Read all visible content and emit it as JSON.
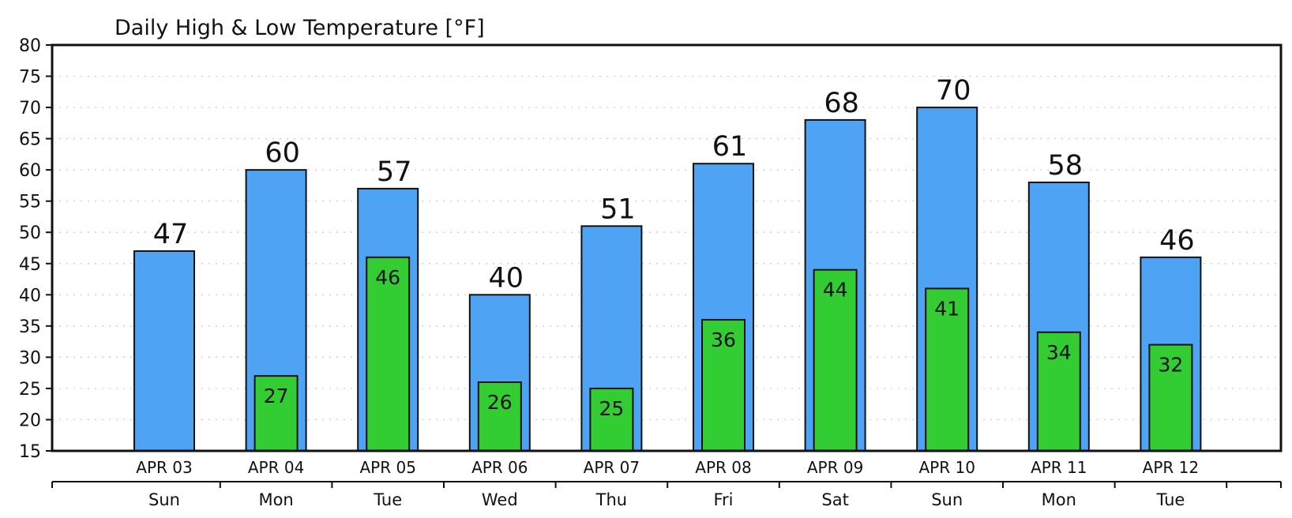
{
  "chart_data": {
    "type": "bar",
    "title": "Daily High & Low Temperature [°F]",
    "ylim": [
      15,
      80
    ],
    "yticks": [
      15,
      20,
      25,
      30,
      35,
      40,
      45,
      50,
      55,
      60,
      65,
      70,
      75,
      80
    ],
    "grid": true,
    "categories": [
      "APR 03",
      "APR 04",
      "APR 05",
      "APR 06",
      "APR 07",
      "APR 08",
      "APR 09",
      "APR 10",
      "APR 11",
      "APR 12"
    ],
    "weekdays": [
      "Sun",
      "Mon",
      "Tue",
      "Wed",
      "Thu",
      "Fri",
      "Sat",
      "Sun",
      "Mon",
      "Tue"
    ],
    "series": [
      {
        "values": [
          47,
          60,
          57,
          40,
          51,
          61,
          68,
          70,
          58,
          46
        ],
        "color": "#4fa3f5"
      },
      {
        "values": [
          null,
          27,
          46,
          26,
          25,
          36,
          44,
          41,
          34,
          32
        ],
        "color": "#33cc33"
      }
    ]
  }
}
